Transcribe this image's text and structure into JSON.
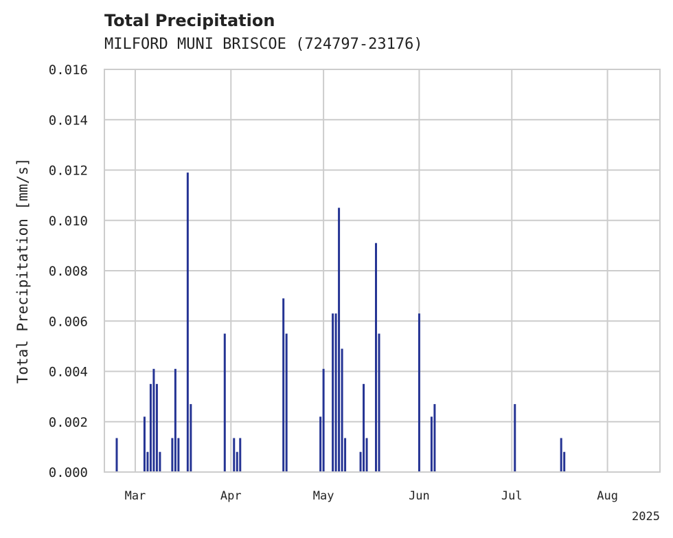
{
  "chart_data": {
    "type": "bar",
    "title": "Total Precipitation",
    "subtitle": "MILFORD MUNI BRISCOE (724797-23176)",
    "xlabel": "",
    "ylabel": "Total Precipitation [mm/s]",
    "year_label": "2025",
    "ylim": [
      0,
      0.016
    ],
    "xlim": [
      "2025-02-19",
      "2025-08-18"
    ],
    "y_ticks": [
      "0.000",
      "0.002",
      "0.004",
      "0.006",
      "0.008",
      "0.010",
      "0.012",
      "0.014",
      "0.016"
    ],
    "x_ticks": [
      {
        "label": "Mar",
        "date": "2025-03-01"
      },
      {
        "label": "Apr",
        "date": "2025-04-01"
      },
      {
        "label": "May",
        "date": "2025-05-01"
      },
      {
        "label": "Jun",
        "date": "2025-06-01"
      },
      {
        "label": "Jul",
        "date": "2025-07-01"
      },
      {
        "label": "Aug",
        "date": "2025-08-01"
      }
    ],
    "grid": true,
    "bar_color": "#253494",
    "series": [
      {
        "values": [
          {
            "x": "2025-02-23",
            "y": 0.00135
          },
          {
            "x": "2025-03-04",
            "y": 0.0022
          },
          {
            "x": "2025-03-05",
            "y": 0.0008
          },
          {
            "x": "2025-03-06",
            "y": 0.0035
          },
          {
            "x": "2025-03-07",
            "y": 0.0041
          },
          {
            "x": "2025-03-08",
            "y": 0.0035
          },
          {
            "x": "2025-03-09",
            "y": 0.0008
          },
          {
            "x": "2025-03-13",
            "y": 0.00135
          },
          {
            "x": "2025-03-14",
            "y": 0.0041
          },
          {
            "x": "2025-03-15",
            "y": 0.00135
          },
          {
            "x": "2025-03-18",
            "y": 0.0119
          },
          {
            "x": "2025-03-19",
            "y": 0.0027
          },
          {
            "x": "2025-03-30",
            "y": 0.0055
          },
          {
            "x": "2025-04-02",
            "y": 0.00135
          },
          {
            "x": "2025-04-03",
            "y": 0.0008
          },
          {
            "x": "2025-04-04",
            "y": 0.00135
          },
          {
            "x": "2025-04-18",
            "y": 0.0069
          },
          {
            "x": "2025-04-19",
            "y": 0.0055
          },
          {
            "x": "2025-04-30",
            "y": 0.0022
          },
          {
            "x": "2025-05-01",
            "y": 0.0041
          },
          {
            "x": "2025-05-04",
            "y": 0.0063
          },
          {
            "x": "2025-05-05",
            "y": 0.0063
          },
          {
            "x": "2025-05-06",
            "y": 0.0105
          },
          {
            "x": "2025-05-07",
            "y": 0.0049
          },
          {
            "x": "2025-05-08",
            "y": 0.00135
          },
          {
            "x": "2025-05-13",
            "y": 0.0008
          },
          {
            "x": "2025-05-14",
            "y": 0.0035
          },
          {
            "x": "2025-05-15",
            "y": 0.00135
          },
          {
            "x": "2025-05-18",
            "y": 0.0091
          },
          {
            "x": "2025-05-19",
            "y": 0.0055
          },
          {
            "x": "2025-06-01",
            "y": 0.0063
          },
          {
            "x": "2025-06-05",
            "y": 0.0022
          },
          {
            "x": "2025-06-06",
            "y": 0.0027
          },
          {
            "x": "2025-07-02",
            "y": 0.0027
          },
          {
            "x": "2025-07-17",
            "y": 0.00135
          },
          {
            "x": "2025-07-18",
            "y": 0.0008
          }
        ]
      }
    ]
  }
}
